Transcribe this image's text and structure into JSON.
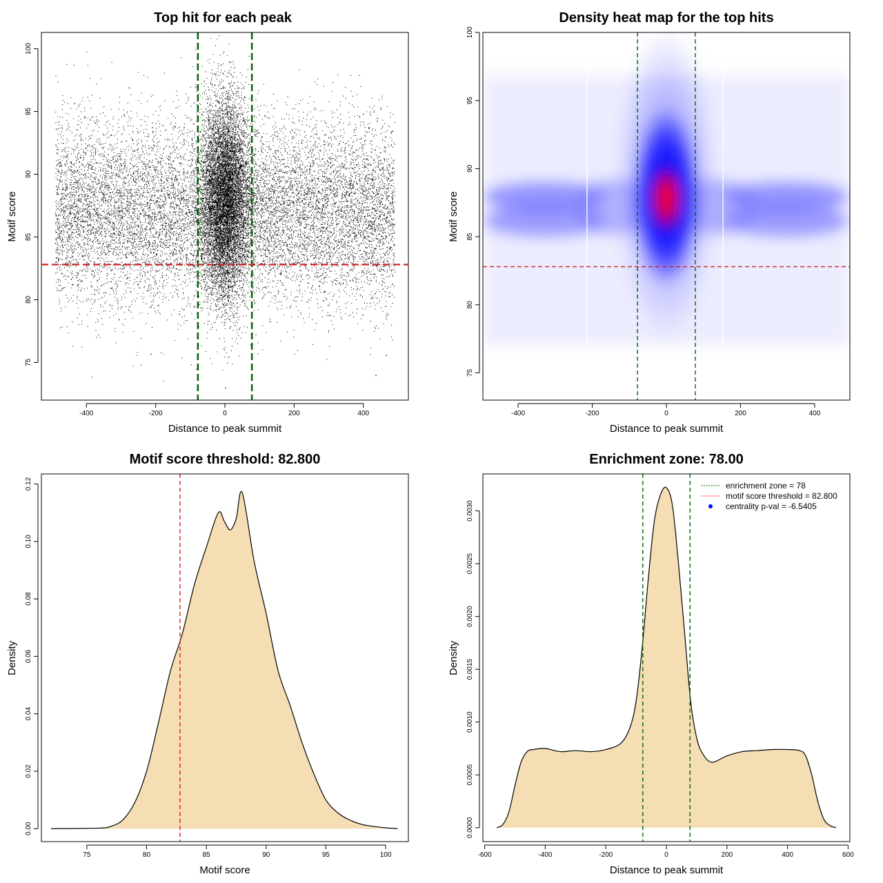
{
  "chart_data": [
    {
      "id": "scatter",
      "type": "scatter",
      "title": "Top hit for each peak",
      "xlabel": "Distance to peak summit",
      "ylabel": "Motif score",
      "xlim": [
        -530,
        530
      ],
      "ylim": [
        72,
        101.3
      ],
      "xticks": [
        -400,
        -200,
        0,
        200,
        400
      ],
      "yticks": [
        75,
        80,
        85,
        90,
        95,
        100
      ],
      "vlines": [
        -78,
        78
      ],
      "hline": 82.8,
      "x_range": [
        -490,
        490
      ],
      "score_center": 87,
      "central_band_halfwidth": 78,
      "outlier_points": [
        {
          "x": 0,
          "y": 73.0
        },
        {
          "x": 435,
          "y": 74.0
        },
        {
          "x": -215,
          "y": 75.7
        },
        {
          "x": 465,
          "y": 75.6
        }
      ]
    },
    {
      "id": "heatmap",
      "type": "heatmap",
      "title": "Density heat map for the top hits",
      "xlabel": "Distance to peak summit",
      "ylabel": "Motif score",
      "xlim": [
        -495,
        495
      ],
      "ylim": [
        73,
        100
      ],
      "xticks": [
        -400,
        -200,
        0,
        200,
        400
      ],
      "yticks": [
        75,
        80,
        85,
        90,
        95,
        100
      ],
      "vlines": [
        -78,
        78
      ],
      "hline": 82.8,
      "hotspot": {
        "x": 0,
        "y": 87.5
      },
      "horizontal_bands": [
        86,
        88
      ]
    },
    {
      "id": "score-density",
      "type": "area",
      "title": "Motif score threshold: 82.800",
      "xlabel": "Motif score",
      "ylabel": "Density",
      "xlim": [
        71.2,
        101.9
      ],
      "ylim": [
        -0.0045,
        0.1235
      ],
      "xticks": [
        75,
        80,
        85,
        90,
        95,
        100
      ],
      "yticks": [
        0.0,
        0.02,
        0.04,
        0.06,
        0.08,
        0.1,
        0.12
      ],
      "ytick_labels": [
        "0.00",
        "0.02",
        "0.04",
        "0.06",
        "0.08",
        "0.10",
        "0.12"
      ],
      "vline": 82.8,
      "fill": "#f5deb3",
      "x": [
        72,
        76,
        77,
        78,
        79,
        80,
        81,
        82,
        83,
        84,
        85,
        86,
        86.5,
        87,
        87.5,
        88,
        89,
        90,
        91,
        92,
        93,
        94,
        95,
        96,
        97,
        98,
        99,
        100,
        101
      ],
      "y": [
        0.0,
        0.0002,
        0.0008,
        0.003,
        0.009,
        0.02,
        0.037,
        0.055,
        0.068,
        0.085,
        0.098,
        0.11,
        0.107,
        0.104,
        0.108,
        0.117,
        0.093,
        0.075,
        0.055,
        0.043,
        0.03,
        0.019,
        0.01,
        0.0055,
        0.003,
        0.0015,
        0.0008,
        0.0003,
        0.0
      ]
    },
    {
      "id": "distance-density",
      "type": "area",
      "title": "Enrichment zone: 78.00",
      "xlabel": "Distance to peak summit",
      "ylabel": "Density",
      "xlim": [
        -606,
        606
      ],
      "ylim": [
        -0.000132,
        0.00335
      ],
      "xticks": [
        -600,
        -400,
        -200,
        0,
        200,
        400,
        600
      ],
      "yticks": [
        0.0,
        0.0005,
        0.001,
        0.0015,
        0.002,
        0.0025,
        0.003
      ],
      "ytick_labels": [
        "0.0000",
        "0.0005",
        "0.0010",
        "0.0015",
        "0.0020",
        "0.0025",
        "0.0030"
      ],
      "vlines": [
        -78,
        78
      ],
      "fill": "#f5deb3",
      "x": [
        -560,
        -540,
        -520,
        -500,
        -480,
        -460,
        -440,
        -400,
        -350,
        -300,
        -250,
        -200,
        -150,
        -120,
        -100,
        -80,
        -60,
        -40,
        -20,
        0,
        20,
        40,
        60,
        80,
        100,
        120,
        150,
        200,
        250,
        300,
        350,
        400,
        440,
        460,
        480,
        500,
        520,
        540,
        560
      ],
      "y": [
        0.0,
        3e-05,
        0.00015,
        0.0004,
        0.00062,
        0.00072,
        0.00074,
        0.00075,
        0.00072,
        0.00073,
        0.00072,
        0.00074,
        0.0008,
        0.00095,
        0.0012,
        0.0017,
        0.00235,
        0.0029,
        0.00315,
        0.00322,
        0.00305,
        0.0025,
        0.00185,
        0.0012,
        0.00085,
        0.0007,
        0.00062,
        0.00068,
        0.00072,
        0.00073,
        0.00074,
        0.00074,
        0.00073,
        0.00068,
        0.0005,
        0.00025,
        8e-05,
        2e-05,
        0.0
      ],
      "legend": {
        "position": "top-right",
        "entries": [
          {
            "label": "enrichment zone = 78",
            "color": "#006400",
            "style": "dotted-line"
          },
          {
            "label": "motif score threshold = 82.800",
            "color": "#ff0000",
            "style": "dotted-line"
          },
          {
            "label": "centrality p-val = -6.5405",
            "color": "#0000ff",
            "style": "point"
          }
        ]
      }
    }
  ],
  "colors": {
    "points": "#000000",
    "enrichment_line": "#006400",
    "threshold_line": "#cc2222",
    "heat_low": "#ffffff",
    "heat_mid": "#0000ff",
    "heat_high": "#ff0000",
    "density_fill": "#f5deb3"
  }
}
